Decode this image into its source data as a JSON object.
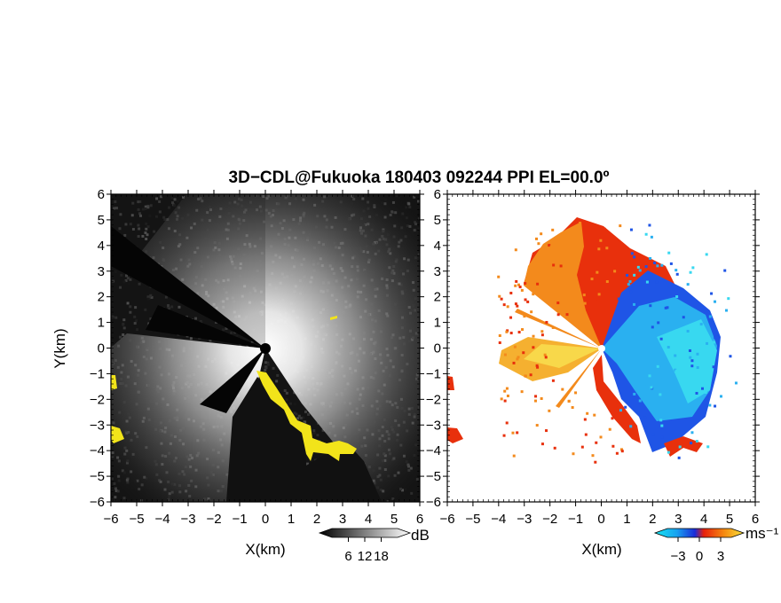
{
  "title": "3D−CDL@Fukuoka 180403 092244 PPI EL=00.0º",
  "chart_data": [
    {
      "type": "heatmap",
      "panel": "signal-intensity",
      "xlabel": "X(km)",
      "ylabel": "Y(km)",
      "xlim": [
        -6,
        6
      ],
      "ylim": [
        -6,
        6
      ],
      "x_ticks": [
        "−6",
        "−5",
        "−4",
        "−3",
        "−2",
        "−1",
        "0",
        "1",
        "2",
        "3",
        "4",
        "5",
        "6"
      ],
      "y_ticks": [
        "6",
        "5",
        "4",
        "3",
        "2",
        "1",
        "0",
        "−1",
        "−2",
        "−3",
        "−4",
        "−5",
        "−6"
      ],
      "colormap": "grayscale",
      "flag_color": "#f2e41a",
      "colorbar": {
        "unit": "dB",
        "ticks": [
          "6",
          "12",
          "18"
        ],
        "range": [
          0,
          24
        ]
      }
    },
    {
      "type": "heatmap",
      "panel": "radial-velocity",
      "xlabel": "X(km)",
      "xlim": [
        -6,
        6
      ],
      "ylim": [
        -6,
        6
      ],
      "x_ticks": [
        "−6",
        "−5",
        "−4",
        "−3",
        "−2",
        "−1",
        "0",
        "1",
        "2",
        "3",
        "4",
        "5",
        "6"
      ],
      "y_ticks": [
        "6",
        "5",
        "4",
        "3",
        "2",
        "1",
        "0",
        "−1",
        "−2",
        "−3",
        "−4",
        "−5",
        "−6"
      ],
      "colormap": "cyan-blue-red-yellow",
      "colorbar": {
        "unit": "ms⁻¹",
        "ticks": [
          "−3",
          "0",
          "3"
        ],
        "range": [
          -4.5,
          4.5
        ]
      }
    }
  ]
}
